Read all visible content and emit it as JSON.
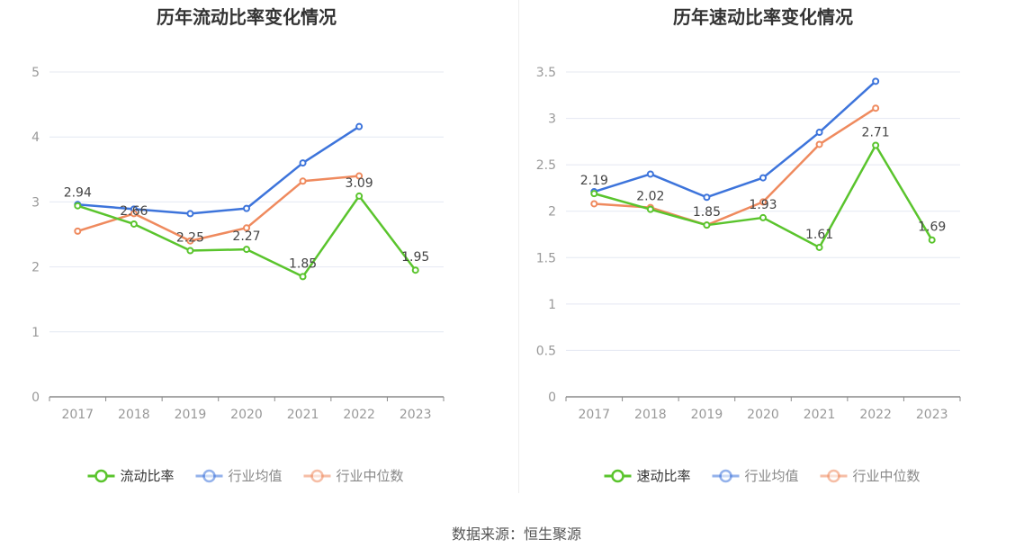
{
  "source_text": "数据来源：恒生聚源",
  "chart_data": [
    {
      "type": "line",
      "title": "历年流动比率变化情况",
      "categories": [
        "2017",
        "2018",
        "2019",
        "2020",
        "2021",
        "2022",
        "2023"
      ],
      "ylim": [
        0,
        5
      ],
      "yticks": [
        "0",
        "1",
        "2",
        "3",
        "4",
        "5"
      ],
      "grid": true,
      "legend_position": "bottom-center",
      "series": [
        {
          "name": "流动比率",
          "color": "#5ac42d",
          "values": [
            2.94,
            2.66,
            2.25,
            2.27,
            1.85,
            3.09,
            1.95
          ],
          "labels": [
            "2.94",
            "2.66",
            "2.25",
            "2.27",
            "1.85",
            "3.09",
            "1.95"
          ]
        },
        {
          "name": "行业均值",
          "color": "#3d74db",
          "values": [
            2.96,
            2.89,
            2.82,
            2.9,
            3.6,
            4.16,
            null
          ]
        },
        {
          "name": "行业中位数",
          "color": "#ef8a5e",
          "values": [
            2.55,
            2.82,
            2.4,
            2.6,
            3.32,
            3.4,
            null
          ]
        }
      ]
    },
    {
      "type": "line",
      "title": "历年速动比率变化情况",
      "categories": [
        "2017",
        "2018",
        "2019",
        "2020",
        "2021",
        "2022",
        "2023"
      ],
      "ylim": [
        0,
        3.5
      ],
      "yticks": [
        "0",
        "0.5",
        "1",
        "1.5",
        "2",
        "2.5",
        "3",
        "3.5"
      ],
      "grid": true,
      "legend_position": "bottom-center",
      "series": [
        {
          "name": "速动比率",
          "color": "#5ac42d",
          "values": [
            2.19,
            2.02,
            1.85,
            1.93,
            1.61,
            2.71,
            1.69
          ],
          "labels": [
            "2.19",
            "2.02",
            "1.85",
            "1.93",
            "1.61",
            "2.71",
            "1.69"
          ]
        },
        {
          "name": "行业均值",
          "color": "#3d74db",
          "values": [
            2.21,
            2.4,
            2.15,
            2.36,
            2.85,
            3.4,
            null
          ]
        },
        {
          "name": "行业中位数",
          "color": "#ef8a5e",
          "values": [
            2.08,
            2.04,
            1.85,
            2.1,
            2.72,
            3.11,
            null
          ]
        }
      ]
    }
  ]
}
